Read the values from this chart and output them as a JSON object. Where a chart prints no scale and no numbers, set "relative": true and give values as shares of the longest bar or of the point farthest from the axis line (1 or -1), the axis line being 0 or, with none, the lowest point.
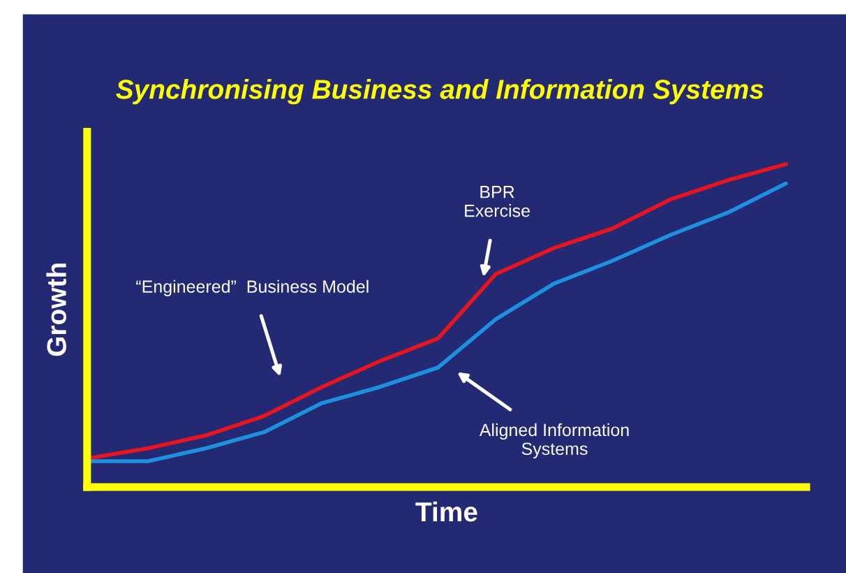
{
  "chart_data": {
    "type": "line",
    "title": "Synchronising Business and Information Systems",
    "xlabel": "Time",
    "ylabel": "Growth",
    "relative": true,
    "categories": [
      null,
      null,
      null,
      null,
      null,
      null,
      null,
      null,
      null,
      null,
      null,
      null,
      null
    ],
    "series": [
      {
        "color": "#e8141e",
        "values": [
          0.09,
          0.12,
          0.16,
          0.22,
          0.31,
          0.39,
          0.46,
          0.66,
          0.74,
          0.8,
          0.89,
          0.95,
          1.0
        ]
      },
      {
        "color": "#1e90e0",
        "values": [
          0.08,
          0.08,
          0.12,
          0.17,
          0.26,
          0.31,
          0.37,
          0.52,
          0.63,
          0.7,
          0.78,
          0.85,
          0.94
        ]
      }
    ],
    "annotations": [
      "BPR\nExercise",
      "“Engineered”  Business Model",
      "Aligned Information\nSystems"
    ],
    "grid": false
  }
}
